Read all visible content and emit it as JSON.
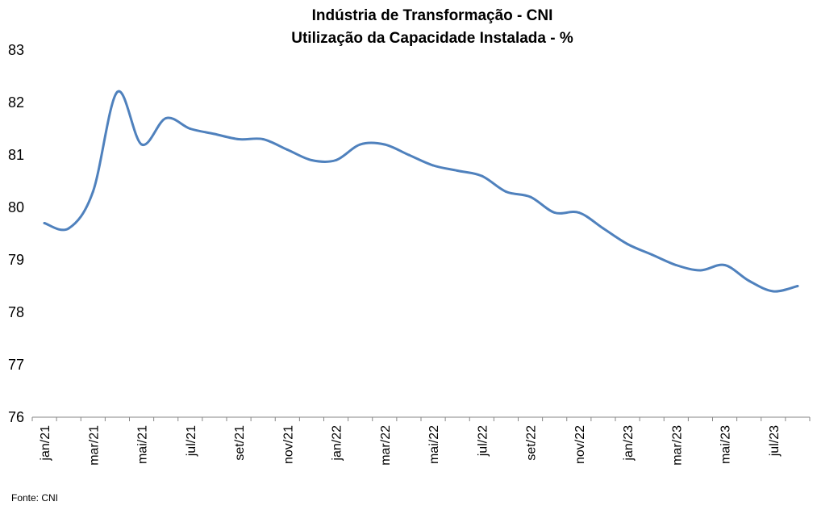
{
  "chart_data": {
    "type": "line",
    "title": "Indústria de Transformação - CNI",
    "subtitle": "Utilização da Capacidade Instalada - %",
    "source": "Fonte: CNI",
    "xlabel": "",
    "ylabel": "",
    "ylim": [
      76,
      83
    ],
    "yticks": [
      76,
      77,
      78,
      79,
      80,
      81,
      82,
      83
    ],
    "grid": false,
    "legend": "none",
    "line_color": "#4f81bd",
    "x": [
      "jan/21",
      "fev/21",
      "mar/21",
      "abr/21",
      "mai/21",
      "jun/21",
      "jul/21",
      "ago/21",
      "set/21",
      "out/21",
      "nov/21",
      "dez/21",
      "jan/22",
      "fev/22",
      "mar/22",
      "abr/22",
      "mai/22",
      "jun/22",
      "jul/22",
      "ago/22",
      "set/22",
      "out/22",
      "nov/22",
      "dez/22",
      "jan/23",
      "fev/23",
      "mar/23",
      "abr/23",
      "mai/23",
      "jun/23",
      "jul/23",
      "ago/23"
    ],
    "xtick_labels": [
      "jan/21",
      "mar/21",
      "mai/21",
      "jul/21",
      "set/21",
      "nov/21",
      "jan/22",
      "mar/22",
      "mai/22",
      "jul/22",
      "set/22",
      "nov/22",
      "jan/23",
      "mar/23",
      "mai/23",
      "jul/23"
    ],
    "series": [
      {
        "values": [
          79.7,
          79.6,
          80.3,
          82.2,
          81.2,
          81.7,
          81.5,
          81.4,
          81.3,
          81.3,
          81.1,
          80.9,
          80.9,
          81.2,
          81.2,
          81.0,
          80.8,
          80.7,
          80.6,
          80.3,
          80.2,
          79.9,
          79.9,
          79.6,
          79.3,
          79.1,
          78.9,
          78.8,
          78.9,
          78.6,
          78.4,
          78.5
        ]
      }
    ]
  }
}
